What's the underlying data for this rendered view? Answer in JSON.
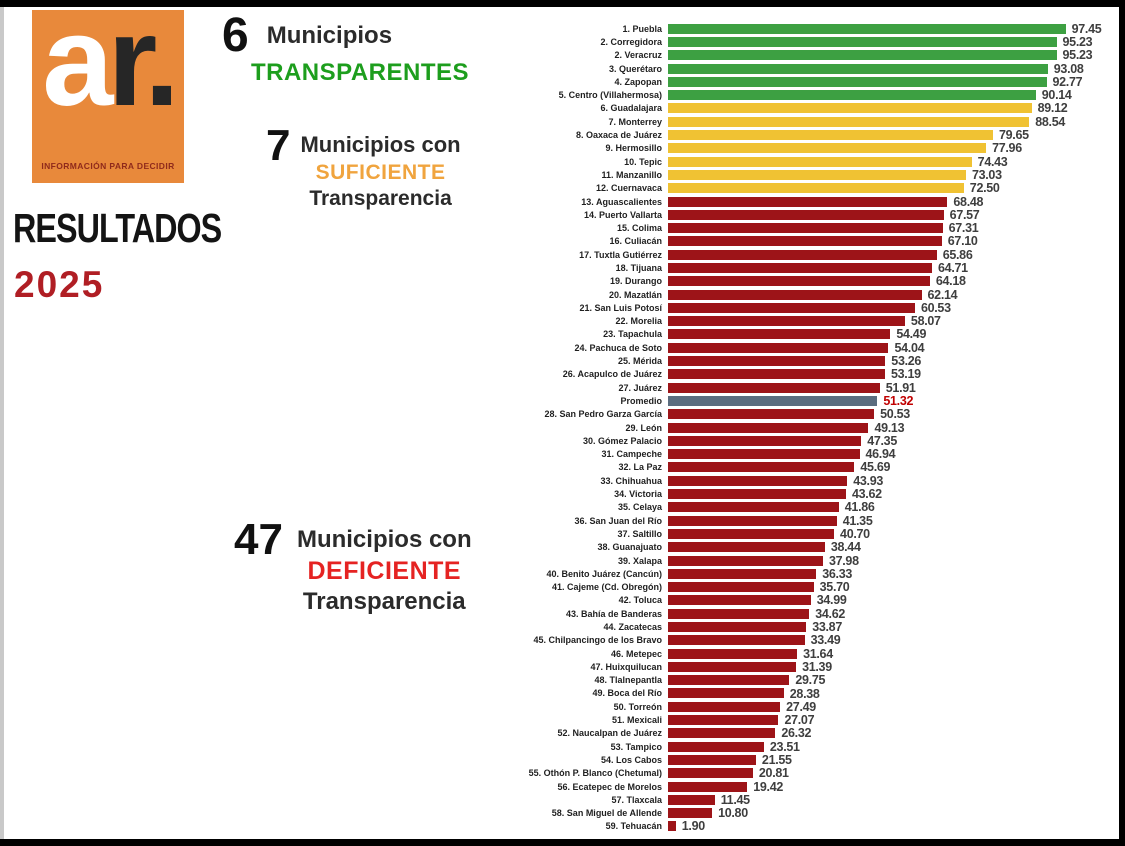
{
  "logo": {
    "a": "a",
    "r": "r.",
    "tagline": "INFORMACIÓN PARA DECIDIR",
    "bg_color": "#e8893b",
    "tagline_color": "#8f2a1b"
  },
  "title": {
    "resultados": "RESULTADOS",
    "year": "2025",
    "year_color": "#b01e24"
  },
  "legend": [
    {
      "count": "6",
      "line1": "Municipios",
      "keyword": "TRANSPARENTES",
      "suffix": "",
      "keyword_color": "#1d9e1d"
    },
    {
      "count": "7",
      "line1": "Municipios con",
      "keyword": "SUFICIENTE",
      "suffix": "Transparencia",
      "keyword_color": "#f0a43e"
    },
    {
      "count": "47",
      "line1": "Municipios con",
      "keyword": "DEFICIENTE",
      "suffix": "Transparencia",
      "keyword_color": "#e52322"
    }
  ],
  "chart_data": {
    "type": "bar",
    "orientation": "horizontal",
    "title": "RESULTADOS 2025",
    "xlabel": "",
    "ylabel": "",
    "xlim": [
      0,
      100
    ],
    "grid": false,
    "legend_position": "left",
    "colors": {
      "transparent": "#3da042",
      "sufficient": "#f0c233",
      "deficient": "#9d1418",
      "average": "#5b6c7e",
      "value_text": "#3e3e3e",
      "average_value_text": "#c00000"
    },
    "rows": [
      {
        "label": "1. Puebla",
        "value": 97.45,
        "category": "transparent"
      },
      {
        "label": "2. Corregidora",
        "value": 95.23,
        "category": "transparent"
      },
      {
        "label": "2. Veracruz",
        "value": 95.23,
        "category": "transparent"
      },
      {
        "label": "3. Querétaro",
        "value": 93.08,
        "category": "transparent"
      },
      {
        "label": "4. Zapopan",
        "value": 92.77,
        "category": "transparent"
      },
      {
        "label": "5. Centro (Villahermosa)",
        "value": 90.14,
        "category": "transparent"
      },
      {
        "label": "6. Guadalajara",
        "value": 89.12,
        "category": "sufficient"
      },
      {
        "label": "7. Monterrey",
        "value": 88.54,
        "category": "sufficient"
      },
      {
        "label": "8. Oaxaca de Juárez",
        "value": 79.65,
        "category": "sufficient"
      },
      {
        "label": "9. Hermosillo",
        "value": 77.96,
        "category": "sufficient"
      },
      {
        "label": "10. Tepic",
        "value": 74.43,
        "category": "sufficient"
      },
      {
        "label": "11. Manzanillo",
        "value": 73.03,
        "category": "sufficient"
      },
      {
        "label": "12. Cuernavaca",
        "value": 72.5,
        "category": "sufficient"
      },
      {
        "label": "13. Aguascalientes",
        "value": 68.48,
        "category": "deficient"
      },
      {
        "label": "14. Puerto Vallarta",
        "value": 67.57,
        "category": "deficient"
      },
      {
        "label": "15. Colima",
        "value": 67.31,
        "category": "deficient"
      },
      {
        "label": "16. Culiacán",
        "value": 67.1,
        "category": "deficient"
      },
      {
        "label": "17. Tuxtla Gutiérrez",
        "value": 65.86,
        "category": "deficient"
      },
      {
        "label": "18. Tijuana",
        "value": 64.71,
        "category": "deficient"
      },
      {
        "label": "19. Durango",
        "value": 64.18,
        "category": "deficient"
      },
      {
        "label": "20. Mazatlán",
        "value": 62.14,
        "category": "deficient"
      },
      {
        "label": "21. San Luis Potosí",
        "value": 60.53,
        "category": "deficient"
      },
      {
        "label": "22. Morelia",
        "value": 58.07,
        "category": "deficient"
      },
      {
        "label": "23. Tapachula",
        "value": 54.49,
        "category": "deficient"
      },
      {
        "label": "24. Pachuca de Soto",
        "value": 54.04,
        "category": "deficient"
      },
      {
        "label": "25. Mérida",
        "value": 53.26,
        "category": "deficient"
      },
      {
        "label": "26. Acapulco de Juárez",
        "value": 53.19,
        "category": "deficient"
      },
      {
        "label": "27. Juárez",
        "value": 51.91,
        "category": "deficient"
      },
      {
        "label": "Promedio",
        "value": 51.32,
        "category": "average"
      },
      {
        "label": "28. San Pedro Garza García",
        "value": 50.53,
        "category": "deficient"
      },
      {
        "label": "29. León",
        "value": 49.13,
        "category": "deficient"
      },
      {
        "label": "30. Gómez Palacio",
        "value": 47.35,
        "category": "deficient"
      },
      {
        "label": "31. Campeche",
        "value": 46.94,
        "category": "deficient"
      },
      {
        "label": "32. La Paz",
        "value": 45.69,
        "category": "deficient"
      },
      {
        "label": "33. Chihuahua",
        "value": 43.93,
        "category": "deficient"
      },
      {
        "label": "34. Victoria",
        "value": 43.62,
        "category": "deficient"
      },
      {
        "label": "35. Celaya",
        "value": 41.86,
        "category": "deficient"
      },
      {
        "label": "36. San Juan del Río",
        "value": 41.35,
        "category": "deficient"
      },
      {
        "label": "37. Saltillo",
        "value": 40.7,
        "category": "deficient"
      },
      {
        "label": "38. Guanajuato",
        "value": 38.44,
        "category": "deficient"
      },
      {
        "label": "39. Xalapa",
        "value": 37.98,
        "category": "deficient"
      },
      {
        "label": "40. Benito Juárez (Cancún)",
        "value": 36.33,
        "category": "deficient"
      },
      {
        "label": "41. Cajeme (Cd. Obregón)",
        "value": 35.7,
        "category": "deficient"
      },
      {
        "label": "42. Toluca",
        "value": 34.99,
        "category": "deficient"
      },
      {
        "label": "43. Bahía de Banderas",
        "value": 34.62,
        "category": "deficient"
      },
      {
        "label": "44. Zacatecas",
        "value": 33.87,
        "category": "deficient"
      },
      {
        "label": "45. Chilpancingo de los Bravo",
        "value": 33.49,
        "category": "deficient"
      },
      {
        "label": "46. Metepec",
        "value": 31.64,
        "category": "deficient"
      },
      {
        "label": "47. Huixquilucan",
        "value": 31.39,
        "category": "deficient"
      },
      {
        "label": "48. Tlalnepantla",
        "value": 29.75,
        "category": "deficient"
      },
      {
        "label": "49. Boca del Río",
        "value": 28.38,
        "category": "deficient"
      },
      {
        "label": "50. Torreón",
        "value": 27.49,
        "category": "deficient"
      },
      {
        "label": "51. Mexicali",
        "value": 27.07,
        "category": "deficient"
      },
      {
        "label": "52. Naucalpan de Juárez",
        "value": 26.32,
        "category": "deficient"
      },
      {
        "label": "53. Tampico",
        "value": 23.51,
        "category": "deficient"
      },
      {
        "label": "54. Los Cabos",
        "value": 21.55,
        "category": "deficient"
      },
      {
        "label": "55. Othón P. Blanco (Chetumal)",
        "value": 20.81,
        "category": "deficient"
      },
      {
        "label": "56. Ecatepec de Morelos",
        "value": 19.42,
        "category": "deficient"
      },
      {
        "label": "57. Tlaxcala",
        "value": 11.45,
        "category": "deficient"
      },
      {
        "label": "58. San Miguel de Allende",
        "value": 10.8,
        "category": "deficient"
      },
      {
        "label": "59. Tehuacán",
        "value": 1.9,
        "category": "deficient"
      }
    ]
  }
}
